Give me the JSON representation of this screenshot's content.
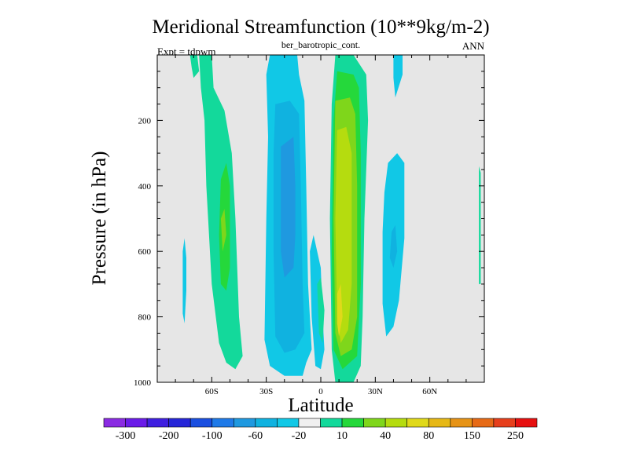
{
  "chart_data": {
    "type": "heatmap",
    "title": "Meridional Streamfunction (10**9kg/m-2)",
    "subtitle": "ber_barotropic_cont.",
    "left_label": "Expt = tdpwm",
    "right_label": "ANN",
    "xlabel": "Latitude",
    "ylabel": "Pressure (in hPa)",
    "xlim": [
      -90,
      90
    ],
    "ylim": [
      1000,
      0
    ],
    "x_ticks": [
      {
        "value": -60,
        "label": "60S"
      },
      {
        "value": -30,
        "label": "30S"
      },
      {
        "value": 0,
        "label": "0"
      },
      {
        "value": 30,
        "label": "30N"
      },
      {
        "value": 60,
        "label": "60N"
      }
    ],
    "y_ticks": [
      {
        "value": 200,
        "label": "200"
      },
      {
        "value": 400,
        "label": "400"
      },
      {
        "value": 600,
        "label": "600"
      },
      {
        "value": 800,
        "label": "800"
      },
      {
        "value": 1000,
        "label": "1000"
      }
    ],
    "background_color": "#e6e6e6",
    "colorbar": {
      "colors": [
        "#8a2be2",
        "#6a1be8",
        "#3f1fe0",
        "#2626d8",
        "#1a4fe0",
        "#1f7ae8",
        "#1f99e0",
        "#10b2e0",
        "#11c8e6",
        "#f0f0f0",
        "#13d99b",
        "#25d83b",
        "#7fd61b",
        "#b5dc0f",
        "#e0d91a",
        "#e6b816",
        "#e69316",
        "#e66a16",
        "#e63f1c",
        "#e61010"
      ],
      "labels": [
        {
          "index": 1,
          "text": "-300"
        },
        {
          "index": 3,
          "text": "-200"
        },
        {
          "index": 5,
          "text": "-100"
        },
        {
          "index": 7,
          "text": "-60"
        },
        {
          "index": 9,
          "text": "-20"
        },
        {
          "index": 11,
          "text": "10"
        },
        {
          "index": 13,
          "text": "40"
        },
        {
          "index": 15,
          "text": "80"
        },
        {
          "index": 17,
          "text": "150"
        },
        {
          "index": 19,
          "text": "250"
        }
      ]
    },
    "regions": [
      {
        "name": "ne-cyan-top",
        "color": "#11c8e6",
        "points": [
          [
            40,
            0
          ],
          [
            45,
            0
          ],
          [
            45,
            60
          ],
          [
            41,
            130
          ],
          [
            40,
            70
          ]
        ]
      },
      {
        "name": "ne-cyan-bottom",
        "color": "#11c8e6",
        "points": [
          [
            37,
            330
          ],
          [
            42,
            300
          ],
          [
            46,
            330
          ],
          [
            46,
            560
          ],
          [
            43,
            750
          ],
          [
            40,
            830
          ],
          [
            36,
            860
          ],
          [
            34,
            760
          ],
          [
            34,
            540
          ],
          [
            35,
            420
          ]
        ]
      },
      {
        "name": "ne-blue",
        "color": "#10b2e0",
        "points": [
          [
            39,
            540
          ],
          [
            41,
            520
          ],
          [
            42,
            600
          ],
          [
            40,
            650
          ],
          [
            38,
            620
          ]
        ]
      },
      {
        "name": "nh-green-tall",
        "color": "#13d99b",
        "points": [
          [
            8,
            -10
          ],
          [
            18,
            -10
          ],
          [
            25,
            60
          ],
          [
            26,
            200
          ],
          [
            24,
            500
          ],
          [
            23,
            800
          ],
          [
            22,
            950
          ],
          [
            18,
            1000
          ],
          [
            8,
            1000
          ],
          [
            6,
            900
          ],
          [
            5,
            500
          ],
          [
            6,
            150
          ]
        ]
      },
      {
        "name": "nh-green-inner",
        "color": "#25d83b",
        "points": [
          [
            9,
            50
          ],
          [
            18,
            60
          ],
          [
            21,
            100
          ],
          [
            22,
            300
          ],
          [
            22,
            700
          ],
          [
            20,
            920
          ],
          [
            12,
            960
          ],
          [
            7,
            900
          ],
          [
            6,
            600
          ],
          [
            7,
            200
          ]
        ]
      },
      {
        "name": "nh-lime",
        "color": "#7fd61b",
        "points": [
          [
            8,
            140
          ],
          [
            16,
            130
          ],
          [
            19,
            180
          ],
          [
            20,
            400
          ],
          [
            20,
            800
          ],
          [
            17,
            900
          ],
          [
            11,
            920
          ],
          [
            8,
            850
          ],
          [
            7,
            500
          ]
        ]
      },
      {
        "name": "nh-yellowgreen",
        "color": "#b5dc0f",
        "points": [
          [
            9,
            230
          ],
          [
            14,
            220
          ],
          [
            17,
            300
          ],
          [
            17,
            700
          ],
          [
            15,
            840
          ],
          [
            11,
            880
          ],
          [
            9,
            800
          ],
          [
            8,
            500
          ]
        ]
      },
      {
        "name": "nh-yellow-core",
        "color": "#e0d91a",
        "points": [
          [
            9,
            730
          ],
          [
            11,
            700
          ],
          [
            12,
            800
          ],
          [
            10,
            860
          ],
          [
            9,
            820
          ]
        ]
      },
      {
        "name": "sh-cyan-big",
        "color": "#11c8e6",
        "points": [
          [
            -28,
            -20
          ],
          [
            -13,
            -20
          ],
          [
            -12,
            60
          ],
          [
            -9,
            140
          ],
          [
            -8,
            400
          ],
          [
            -7,
            700
          ],
          [
            -5,
            900
          ],
          [
            -8,
            940
          ],
          [
            -10,
            980
          ],
          [
            -20,
            980
          ],
          [
            -28,
            950
          ],
          [
            -31,
            870
          ],
          [
            -30,
            500
          ],
          [
            -29,
            250
          ],
          [
            -30,
            60
          ]
        ]
      },
      {
        "name": "sh-blue-mid",
        "color": "#10b2e0",
        "points": [
          [
            -25,
            150
          ],
          [
            -17,
            140
          ],
          [
            -12,
            180
          ],
          [
            -11,
            400
          ],
          [
            -10,
            700
          ],
          [
            -9,
            850
          ],
          [
            -14,
            900
          ],
          [
            -20,
            910
          ],
          [
            -25,
            860
          ],
          [
            -26,
            600
          ],
          [
            -26,
            300
          ]
        ]
      },
      {
        "name": "sh-blue-dark",
        "color": "#1f99e0",
        "points": [
          [
            -22,
            280
          ],
          [
            -15,
            250
          ],
          [
            -14,
            400
          ],
          [
            -14,
            550
          ],
          [
            -15,
            650
          ],
          [
            -20,
            680
          ],
          [
            -22,
            600
          ],
          [
            -22,
            450
          ]
        ]
      },
      {
        "name": "sh-green-outer",
        "color": "#13d99b",
        "points": [
          [
            -67,
            -10
          ],
          [
            -60,
            -10
          ],
          [
            -59,
            100
          ],
          [
            -53,
            170
          ],
          [
            -49,
            300
          ],
          [
            -47,
            500
          ],
          [
            -45,
            800
          ],
          [
            -43,
            920
          ],
          [
            -47,
            960
          ],
          [
            -52,
            940
          ],
          [
            -56,
            880
          ],
          [
            -60,
            700
          ],
          [
            -63,
            400
          ],
          [
            -64,
            200
          ],
          [
            -66,
            100
          ]
        ]
      },
      {
        "name": "sh-green-inner",
        "color": "#25d83b",
        "points": [
          [
            -55,
            380
          ],
          [
            -52,
            330
          ],
          [
            -50,
            400
          ],
          [
            -50,
            650
          ],
          [
            -52,
            720
          ],
          [
            -55,
            700
          ],
          [
            -56,
            550
          ]
        ]
      },
      {
        "name": "sh-lime-core",
        "color": "#7fd61b",
        "points": [
          [
            -55,
            500
          ],
          [
            -53,
            470
          ],
          [
            -52,
            550
          ],
          [
            -54,
            600
          ]
        ]
      },
      {
        "name": "sh-isolated-left",
        "color": "#13d99b",
        "points": [
          [
            -72,
            -10
          ],
          [
            -68,
            -10
          ],
          [
            -67,
            50
          ],
          [
            -70,
            70
          ],
          [
            -71,
            40
          ]
        ]
      },
      {
        "name": "sh-left-blob",
        "color": "#11c8e6",
        "points": [
          [
            -76,
            600
          ],
          [
            -75,
            560
          ],
          [
            -74,
            620
          ],
          [
            -74,
            720
          ],
          [
            -75,
            820
          ],
          [
            -76,
            790
          ]
        ]
      },
      {
        "name": "eq-cyan",
        "color": "#11c8e6",
        "points": [
          [
            -6,
            600
          ],
          [
            -4,
            550
          ],
          [
            0,
            650
          ],
          [
            1,
            800
          ],
          [
            2,
            900
          ],
          [
            0,
            960
          ],
          [
            -3,
            950
          ],
          [
            -5,
            800
          ]
        ]
      },
      {
        "name": "eq-green",
        "color": "#13d99b",
        "points": [
          [
            -2,
            700
          ],
          [
            0,
            680
          ],
          [
            2,
            780
          ],
          [
            1,
            880
          ],
          [
            -1,
            850
          ]
        ]
      },
      {
        "name": "far-right-strip",
        "color": "#13d99b",
        "points": [
          [
            87,
            340
          ],
          [
            88,
            360
          ],
          [
            88,
            700
          ],
          [
            87,
            700
          ]
        ]
      }
    ]
  }
}
